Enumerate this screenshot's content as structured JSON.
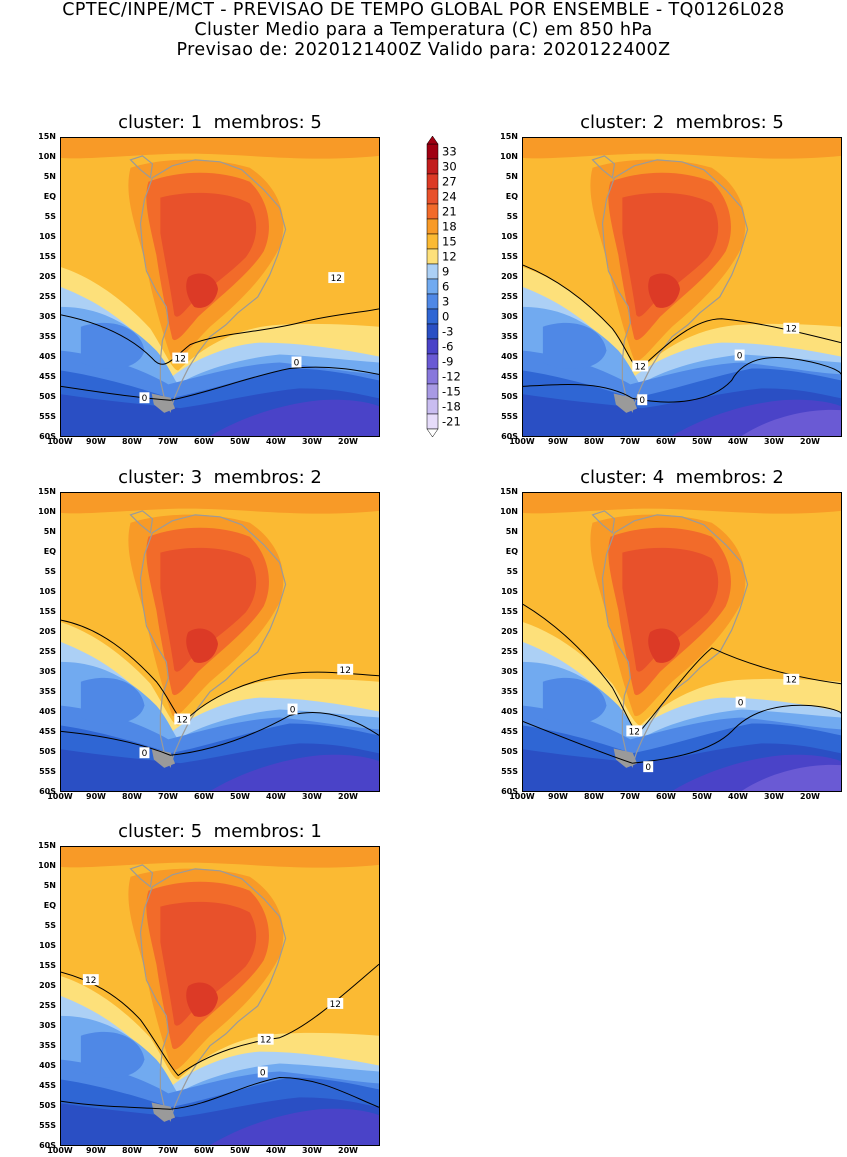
{
  "header": {
    "line1": "CPTEC/INPE/MCT - PREVISAO DE TEMPO GLOBAL POR ENSEMBLE - TQ0126L028",
    "line2": "Cluster Medio para a Temperatura (C) em 850 hPa",
    "line3": "Previsao de: 2020121400Z   Valido para: 2020122400Z"
  },
  "panels": [
    {
      "title": "cluster: 1  membros: 5",
      "contour_labels": [
        "12",
        "12",
        "0",
        "0"
      ]
    },
    {
      "title": "cluster: 2  membros: 5",
      "contour_labels": [
        "12",
        "12",
        "0",
        "0"
      ]
    },
    {
      "title": "cluster: 3  membros: 2",
      "contour_labels": [
        "12",
        "12",
        "0",
        "0"
      ]
    },
    {
      "title": "cluster: 4  membros: 2",
      "contour_labels": [
        "12",
        "12",
        "0",
        "0"
      ]
    },
    {
      "title": "cluster: 5  membros: 1",
      "contour_labels": [
        "12",
        "12",
        "12",
        "0"
      ]
    }
  ],
  "lat_labels": [
    "15N",
    "10N",
    "5N",
    "EQ",
    "5S",
    "10S",
    "15S",
    "20S",
    "25S",
    "30S",
    "35S",
    "40S",
    "45S",
    "50S",
    "55S",
    "60S"
  ],
  "lon_labels": [
    "100W",
    "90W",
    "80W",
    "70W",
    "60W",
    "50W",
    "40W",
    "30W",
    "20W"
  ],
  "colorbar": {
    "labels": [
      "33",
      "30",
      "27",
      "24",
      "21",
      "18",
      "15",
      "12",
      "9",
      "6",
      "3",
      "0",
      "-3",
      "-6",
      "-9",
      "-12",
      "-15",
      "-18",
      "-21"
    ],
    "colors": [
      "#a00012",
      "#c21d1d",
      "#dc3a26",
      "#e8512b",
      "#f26b2a",
      "#f89a27",
      "#fbba33",
      "#fde07a",
      "#acd0f5",
      "#71aaf0",
      "#4f88e6",
      "#2f66d4",
      "#2a4fc4",
      "#4a43c8",
      "#6a5ad4",
      "#8878dc",
      "#a89ae4",
      "#c9bdf0",
      "#e6dcfa"
    ]
  }
}
